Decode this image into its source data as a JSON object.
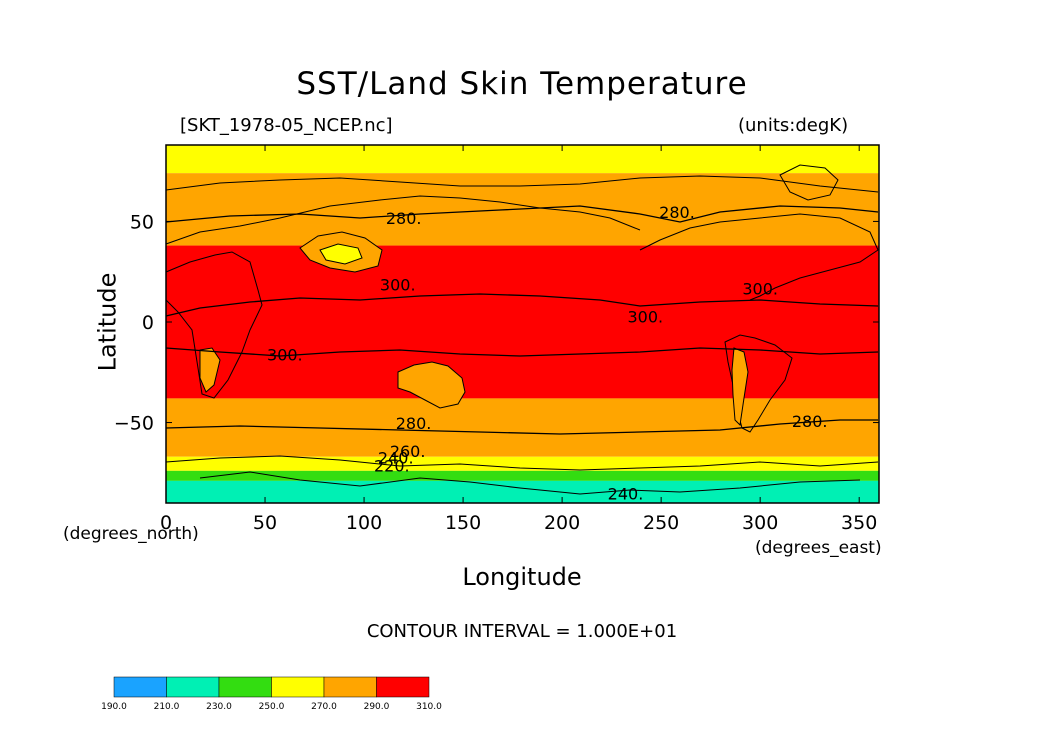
{
  "chart_data": {
    "type": "contour_map",
    "title": "SST/Land Skin Temperature",
    "file_label": "[SKT_1978-05_NCEP.nc]",
    "units_label": "(units:degK)",
    "xlabel": "Longitude",
    "ylabel": "Latitude",
    "x_units": "(degrees_east)",
    "y_units": "(degrees_north)",
    "xlim": [
      0,
      360
    ],
    "ylim": [
      -90,
      88
    ],
    "x_ticks": [
      0,
      50,
      100,
      150,
      200,
      250,
      300,
      350
    ],
    "y_ticks": [
      -50,
      0,
      50
    ],
    "contour_interval": "CONTOUR INTERVAL = 1.000E+01",
    "colorbar": {
      "levels": [
        "190.0",
        "210.0",
        "230.0",
        "250.0",
        "270.0",
        "290.0",
        "310.0"
      ],
      "colors": [
        "#1aa3ff",
        "#00f0b4",
        "#33dd11",
        "#ffff00",
        "#ffa500",
        "#ff0000"
      ]
    },
    "bands": [
      {
        "from_lat": 88,
        "to_lat": 74,
        "range": "250-270",
        "color": "#ffff00"
      },
      {
        "from_lat": 74,
        "to_lat": 38,
        "range": "270-290",
        "color": "#ffa500"
      },
      {
        "from_lat": 38,
        "to_lat": -38,
        "range": "290-310",
        "color": "#ff0000"
      },
      {
        "from_lat": -38,
        "to_lat": -67,
        "range": "270-290",
        "color": "#ffa500"
      },
      {
        "from_lat": -67,
        "to_lat": -74,
        "range": "250-270",
        "color": "#ffff00"
      },
      {
        "from_lat": -74,
        "to_lat": -79,
        "range": "230-250",
        "color": "#33dd11"
      },
      {
        "from_lat": -79,
        "to_lat": -90,
        "range": "210-230",
        "color": "#00f0b4"
      }
    ],
    "contour_labels": [
      {
        "text": "280.",
        "lon": 120,
        "lat": 51
      },
      {
        "text": "280.",
        "lon": 258,
        "lat": 54
      },
      {
        "text": "300.",
        "lon": 117,
        "lat": 18
      },
      {
        "text": "300.",
        "lon": 300,
        "lat": 16
      },
      {
        "text": "300.",
        "lon": 242,
        "lat": 2
      },
      {
        "text": "300.",
        "lon": 60,
        "lat": -17
      },
      {
        "text": "280.",
        "lon": 125,
        "lat": -51
      },
      {
        "text": "280.",
        "lon": 325,
        "lat": -50
      },
      {
        "text": "260.",
        "lon": 122,
        "lat": -65
      },
      {
        "text": "240.",
        "lon": 116,
        "lat": -68
      },
      {
        "text": "220.",
        "lon": 114,
        "lat": -72
      },
      {
        "text": "240.",
        "lon": 232,
        "lat": -86
      }
    ]
  }
}
